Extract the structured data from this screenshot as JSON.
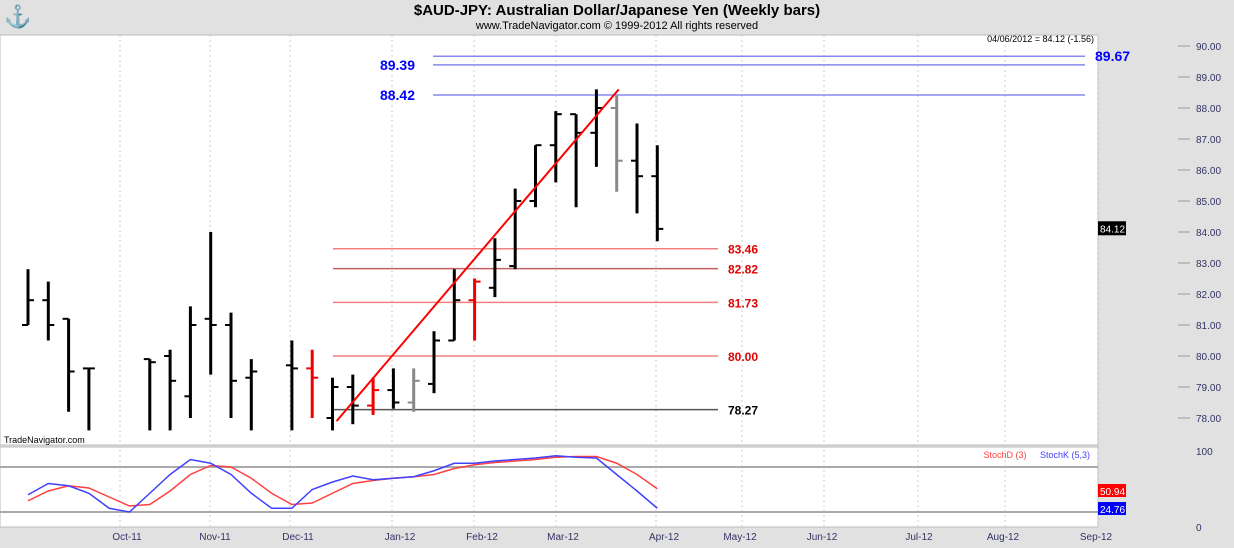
{
  "header": {
    "title": "$AUD-JPY:  Australian Dollar/Japanese Yen  (Weekly bars)",
    "subtitle": "www.TradeNavigator.com © 1999-2012 All rights reserved",
    "logo_icon": "anchor-icon"
  },
  "chart_data": [
    {
      "type": "ohlc-bar",
      "title": "$AUD-JPY:  Australian Dollar/Japanese Yen  (Weekly bars)",
      "status": "04/06/2012 = 84.12 (-1.56)",
      "watermark": "TradeNavigator.com",
      "ylim": [
        77.8,
        90.2
      ],
      "yticks": [
        "90.00",
        "89.00",
        "88.00",
        "87.00",
        "86.00",
        "85.00",
        "84.00",
        "83.00",
        "82.00",
        "81.00",
        "80.00",
        "79.00",
        "78.00"
      ],
      "last_price_label": "84.12",
      "xticks": [
        "Oct-11",
        "Nov-11",
        "Dec-11",
        "Jan-12",
        "Feb-12",
        "Mar-12",
        "Apr-12",
        "May-12",
        "Jun-12",
        "Jul-12",
        "Aug-12",
        "Sep-12"
      ],
      "bars": [
        {
          "w": 0,
          "h": 82.8,
          "l": 81.0,
          "o": 81.0,
          "c": 81.8,
          "color": "#000"
        },
        {
          "w": 1,
          "h": 82.4,
          "l": 80.5,
          "o": 81.8,
          "c": 81.0,
          "color": "#000"
        },
        {
          "w": 2,
          "h": 81.2,
          "l": 78.2,
          "o": 81.2,
          "c": 79.5,
          "color": "#000"
        },
        {
          "w": 3,
          "h": 79.6,
          "l": 77.6,
          "o": 79.6,
          "c": 79.6,
          "color": "#000"
        },
        {
          "w": 6,
          "h": 79.9,
          "l": 77.6,
          "o": 79.9,
          "c": 79.8,
          "color": "#000"
        },
        {
          "w": 7,
          "h": 80.2,
          "l": 77.6,
          "o": 80.0,
          "c": 79.2,
          "color": "#000"
        },
        {
          "w": 8,
          "h": 81.6,
          "l": 78.0,
          "o": 78.7,
          "c": 81.0,
          "color": "#000"
        },
        {
          "w": 9,
          "h": 84.0,
          "l": 79.4,
          "o": 81.2,
          "c": 81.0,
          "color": "#000"
        },
        {
          "w": 10,
          "h": 81.4,
          "l": 78.0,
          "o": 81.0,
          "c": 79.2,
          "color": "#000"
        },
        {
          "w": 11,
          "h": 79.9,
          "l": 77.6,
          "o": 79.3,
          "c": 79.5,
          "color": "#000"
        },
        {
          "w": 13,
          "h": 80.5,
          "l": 77.6,
          "o": 79.7,
          "c": 79.6,
          "color": "#000"
        },
        {
          "w": 14,
          "h": 80.2,
          "l": 78.0,
          "o": 79.6,
          "c": 79.3,
          "color": "#f00000"
        },
        {
          "w": 15,
          "h": 79.3,
          "l": 77.6,
          "o": 78.0,
          "c": 79.0,
          "color": "#000"
        },
        {
          "w": 16,
          "h": 79.4,
          "l": 77.8,
          "o": 79.0,
          "c": 78.4,
          "color": "#000"
        },
        {
          "w": 17,
          "h": 79.3,
          "l": 78.1,
          "o": 78.4,
          "c": 78.9,
          "color": "#f00000"
        },
        {
          "w": 18,
          "h": 79.6,
          "l": 78.3,
          "o": 78.9,
          "c": 78.5,
          "color": "#000"
        },
        {
          "w": 19,
          "h": 79.6,
          "l": 78.2,
          "o": 78.5,
          "c": 79.2,
          "color": "#888"
        },
        {
          "w": 20,
          "h": 80.8,
          "l": 78.8,
          "o": 79.1,
          "c": 80.5,
          "color": "#000"
        },
        {
          "w": 21,
          "h": 82.8,
          "l": 80.5,
          "o": 80.5,
          "c": 81.8,
          "color": "#000"
        },
        {
          "w": 22,
          "h": 82.5,
          "l": 80.5,
          "o": 81.8,
          "c": 82.4,
          "color": "#f00000"
        },
        {
          "w": 23,
          "h": 83.8,
          "l": 81.9,
          "o": 82.2,
          "c": 83.1,
          "color": "#000"
        },
        {
          "w": 24,
          "h": 85.4,
          "l": 82.8,
          "o": 82.9,
          "c": 85.0,
          "color": "#000"
        },
        {
          "w": 25,
          "h": 86.8,
          "l": 84.8,
          "o": 85.0,
          "c": 86.8,
          "color": "#000"
        },
        {
          "w": 26,
          "h": 87.9,
          "l": 85.6,
          "o": 86.8,
          "c": 87.8,
          "color": "#000"
        },
        {
          "w": 27,
          "h": 87.8,
          "l": 84.8,
          "o": 87.8,
          "c": 87.2,
          "color": "#000"
        },
        {
          "w": 28,
          "h": 88.6,
          "l": 86.1,
          "o": 87.2,
          "c": 88.0,
          "color": "#000"
        },
        {
          "w": 29,
          "h": 88.4,
          "l": 85.3,
          "o": 88.0,
          "c": 86.3,
          "color": "#888"
        },
        {
          "w": 30,
          "h": 87.5,
          "l": 84.6,
          "o": 86.3,
          "c": 85.8,
          "color": "#000"
        },
        {
          "w": 31,
          "h": 86.8,
          "l": 83.7,
          "o": 85.8,
          "c": 84.1,
          "color": "#000"
        }
      ],
      "levels": [
        {
          "value": 89.67,
          "label": "89.67",
          "color": "#0000ff",
          "line": "#8888ee",
          "label_side": "right"
        },
        {
          "value": 89.39,
          "label": "89.39",
          "color": "#0000ff",
          "line": "#8888ee",
          "label_side": "left"
        },
        {
          "value": 88.42,
          "label": "88.42",
          "color": "#0000ff",
          "line": "#8888ee",
          "label_side": "left"
        },
        {
          "value": 83.46,
          "label": "83.46",
          "color": "#e00000",
          "line": "#f08080",
          "label_side": "right"
        },
        {
          "value": 82.82,
          "label": "82.82",
          "color": "#e00000",
          "line": "#c06060",
          "label_side": "right"
        },
        {
          "value": 81.73,
          "label": "81.73",
          "color": "#e00000",
          "line": "#f08080",
          "label_side": "right"
        },
        {
          "value": 80.0,
          "label": "80.00",
          "color": "#e00000",
          "line": "#f08080",
          "label_side": "right"
        },
        {
          "value": 78.27,
          "label": "78.27",
          "color": "#000000",
          "line": "#555555",
          "label_side": "right"
        }
      ],
      "trendline": {
        "from": {
          "w": 15.2,
          "price": 77.9
        },
        "to": {
          "w": 29.1,
          "price": 88.6
        },
        "color": "#ff0000"
      }
    },
    {
      "type": "line",
      "series": [
        {
          "name": "StochD (3)",
          "color": "#ff4040",
          "last_label": "50.94",
          "values": [
            35,
            48,
            55,
            52,
            40,
            28,
            30,
            48,
            70,
            82,
            80,
            65,
            45,
            30,
            32,
            45,
            58,
            62,
            65,
            67,
            70,
            78,
            83,
            86,
            88,
            90,
            93,
            94,
            94,
            85,
            70,
            51
          ]
        },
        {
          "name": "StochK (5,3)",
          "color": "#4040ff",
          "last_label": "24.76",
          "values": [
            43,
            58,
            55,
            45,
            25,
            20,
            45,
            70,
            90,
            85,
            70,
            45,
            25,
            25,
            50,
            60,
            68,
            63,
            65,
            67,
            75,
            85,
            85,
            88,
            90,
            92,
            95,
            93,
            92,
            70,
            48,
            25
          ]
        }
      ],
      "ylim": [
        0,
        100
      ],
      "yticks": [
        "100",
        "0"
      ],
      "bands": [
        80,
        20
      ]
    }
  ]
}
